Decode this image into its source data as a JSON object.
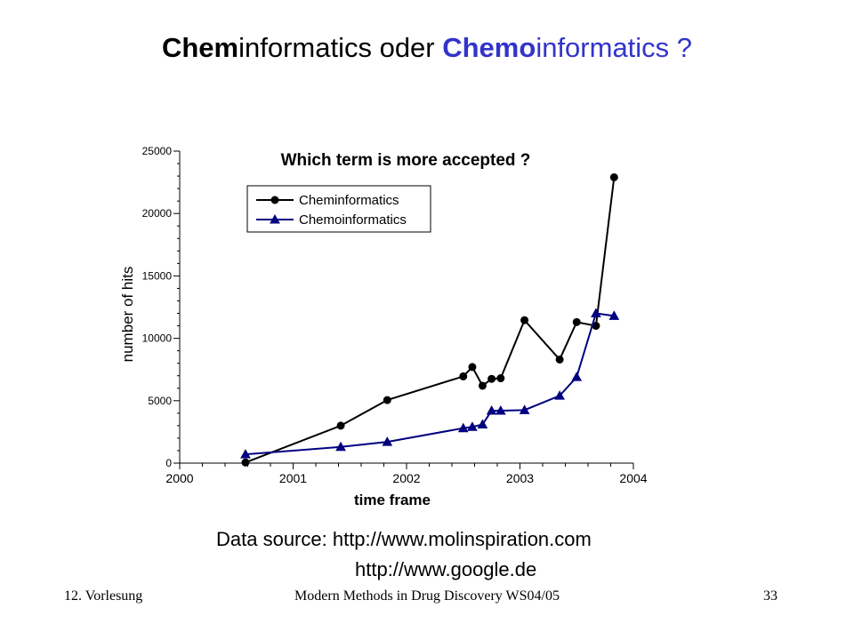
{
  "slide": {
    "title_part1_bold": "Chem",
    "title_part1_rest": "informatics oder ",
    "title_part2_bold": "Chemo",
    "title_part2_rest": "informatics ?",
    "title_highlight_color": "#3333cc",
    "source_line1": "Data source: http://www.molinspiration.com",
    "source_line2": "http://www.google.de",
    "footer_left": "12. Vorlesung",
    "footer_center": "Modern Methods in Drug Discovery WS04/05",
    "footer_right": "33"
  },
  "chart_data": {
    "type": "line",
    "title": "Which term is more accepted ?",
    "xlabel": "time frame",
    "ylabel": "number of hits",
    "xlim": [
      2000,
      2004
    ],
    "ylim": [
      0,
      25000
    ],
    "x_ticks": [
      2000,
      2001,
      2002,
      2003,
      2004
    ],
    "x_tick_labels": [
      "2000",
      "2001",
      "2002",
      "2003",
      "2004"
    ],
    "y_ticks": [
      0,
      5000,
      10000,
      15000,
      20000,
      25000
    ],
    "y_tick_labels": [
      "0",
      "5000",
      "10000",
      "15000",
      "20000",
      "25000"
    ],
    "legend_position": "top-left",
    "grid": false,
    "series": [
      {
        "name": "Cheminformatics",
        "color": "#000000",
        "marker": "circle",
        "x": [
          2000.58,
          2001.42,
          2001.83,
          2002.5,
          2002.58,
          2002.67,
          2002.75,
          2002.83,
          2003.04,
          2003.35,
          2003.5,
          2003.67,
          2003.83
        ],
        "y": [
          50,
          3000,
          5050,
          6950,
          7700,
          6200,
          6750,
          6800,
          11450,
          8300,
          11300,
          11000,
          22900
        ]
      },
      {
        "name": "Chemoinformatics",
        "color": "#000080",
        "marker": "triangle",
        "x": [
          2000.58,
          2001.42,
          2001.83,
          2002.5,
          2002.58,
          2002.67,
          2002.75,
          2002.83,
          2003.04,
          2003.35,
          2003.5,
          2003.67,
          2003.83
        ],
        "y": [
          700,
          1300,
          1700,
          2800,
          2900,
          3100,
          4200,
          4200,
          4250,
          5400,
          6900,
          12000,
          11800
        ]
      }
    ]
  }
}
